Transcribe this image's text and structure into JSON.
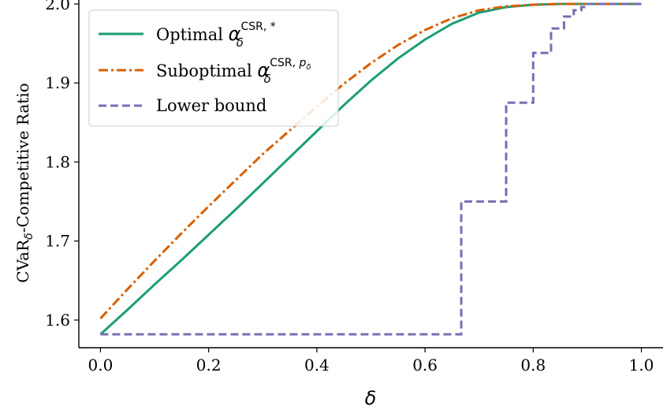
{
  "chart_data": {
    "type": "line",
    "xlabel": "δ",
    "ylabel": "CVaRδ-Competitive Ratio",
    "xlim": [
      -0.04,
      1.04
    ],
    "ylim": [
      1.565,
      2.005
    ],
    "x_ticks": [
      "0.0",
      "0.2",
      "0.4",
      "0.6",
      "0.8",
      "1.0"
    ],
    "y_ticks": [
      "1.6",
      "1.7",
      "1.8",
      "1.9",
      "2.0"
    ],
    "legend_position": "upper-left",
    "series": [
      {
        "name": "Optimal α_δ^{CSR,*}",
        "color": "#1b9e77",
        "style": "solid",
        "x": [
          0.0,
          0.05,
          0.1,
          0.15,
          0.2,
          0.25,
          0.3,
          0.35,
          0.4,
          0.45,
          0.5,
          0.55,
          0.6,
          0.65,
          0.7,
          0.75,
          0.8,
          0.85,
          0.9,
          0.95,
          1.0
        ],
        "y": [
          1.582,
          1.613,
          1.645,
          1.676,
          1.708,
          1.74,
          1.773,
          1.806,
          1.839,
          1.872,
          1.903,
          1.931,
          1.955,
          1.975,
          1.989,
          1.996,
          1.999,
          2.0,
          2.0,
          2.0,
          2.0
        ]
      },
      {
        "name": "Suboptimal α_δ^{CSR,p_δ}",
        "color": "#d95f02",
        "style": "dashdot",
        "x": [
          0.0,
          0.05,
          0.1,
          0.15,
          0.2,
          0.25,
          0.3,
          0.35,
          0.4,
          0.45,
          0.5,
          0.55,
          0.6,
          0.65,
          0.7,
          0.75,
          0.8,
          0.85,
          0.9,
          0.95,
          1.0
        ],
        "y": [
          1.602,
          1.639,
          1.675,
          1.71,
          1.744,
          1.777,
          1.81,
          1.84,
          1.87,
          1.899,
          1.925,
          1.948,
          1.967,
          1.982,
          1.992,
          1.997,
          1.999,
          2.0,
          2.0,
          2.0,
          2.0
        ]
      },
      {
        "name": "Lower bound",
        "color": "#7570b3",
        "style": "dashed",
        "step": true,
        "x": [
          0.0,
          0.667,
          0.667,
          0.75,
          0.75,
          0.8,
          0.8,
          0.833,
          0.833,
          0.857,
          0.857,
          0.875,
          0.875,
          0.889,
          0.889,
          0.9,
          0.9,
          1.0
        ],
        "y": [
          1.582,
          1.582,
          1.75,
          1.75,
          1.875,
          1.875,
          1.938,
          1.938,
          1.969,
          1.969,
          1.984,
          1.984,
          1.992,
          1.992,
          1.996,
          1.996,
          2.0,
          2.0
        ]
      }
    ]
  },
  "legend": {
    "entries": [
      {
        "text": "Optimal ",
        "math": "α",
        "sup": "CSR, *",
        "sub": "δ"
      },
      {
        "text": "Suboptimal ",
        "math": "α",
        "sup": "CSR, p",
        "sup_sub": "δ",
        "sub": "δ"
      },
      {
        "text": "Lower bound"
      }
    ]
  }
}
